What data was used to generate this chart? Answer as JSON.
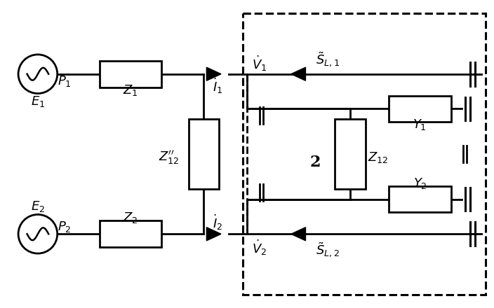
{
  "fig_width": 7.04,
  "fig_height": 4.4,
  "dpi": 100,
  "bg_color": "white",
  "line_color": "black",
  "lw": 2.0
}
